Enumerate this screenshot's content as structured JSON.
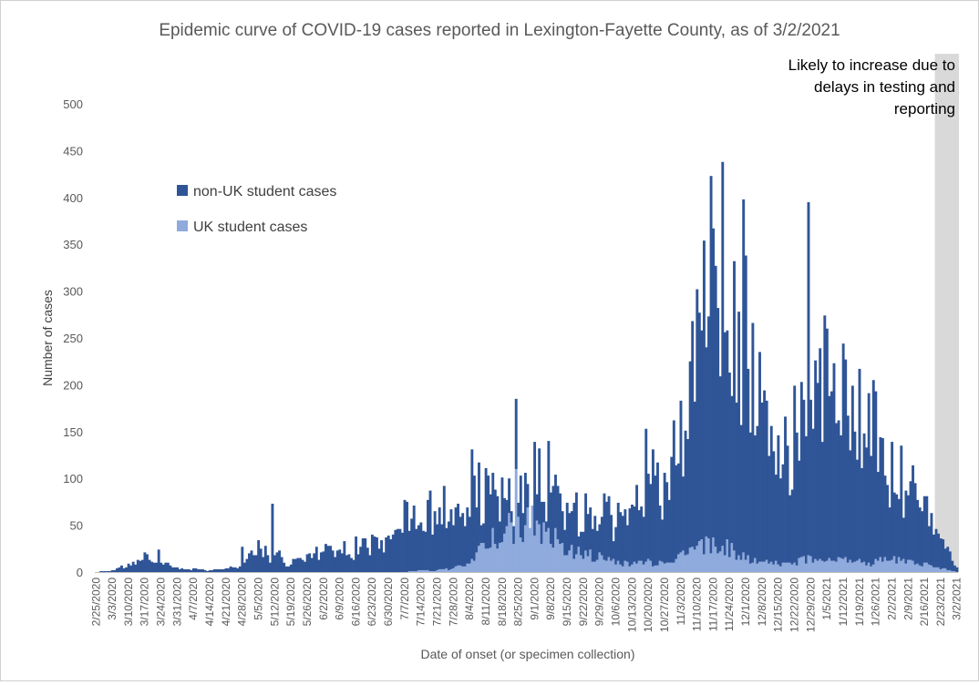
{
  "chart_data": {
    "type": "bar",
    "stacked": true,
    "title": "Epidemic curve of COVID-19 cases reported in Lexington-Fayette County, as of 3/2/2021",
    "xlabel": "Date of onset (or specimen collection)",
    "ylabel": "Number of cases",
    "ylim": [
      0,
      500
    ],
    "yticks": [
      "0",
      "50",
      "100",
      "150",
      "200",
      "250",
      "300",
      "350",
      "400",
      "450",
      "500"
    ],
    "grid": false,
    "legend_placement": "top-left",
    "colors": {
      "non_uk": "#2f5597",
      "uk": "#8faadc",
      "shade": "#d9d9d9"
    },
    "date_ticks": [
      "2/25/2020",
      "3/3/2020",
      "3/10/2020",
      "3/17/2020",
      "3/24/2020",
      "3/31/2020",
      "4/7/2020",
      "4/14/2020",
      "4/21/2020",
      "4/28/2020",
      "5/5/2020",
      "5/12/2020",
      "5/19/2020",
      "5/26/2020",
      "6/2/2020",
      "6/9/2020",
      "6/16/2020",
      "6/23/2020",
      "6/30/2020",
      "7/7/2020",
      "7/14/2020",
      "7/21/2020",
      "7/28/2020",
      "8/4/2020",
      "8/11/2020",
      "8/18/2020",
      "8/25/2020",
      "9/1/2020",
      "9/8/2020",
      "9/15/2020",
      "9/22/2020",
      "9/29/2020",
      "10/6/2020",
      "10/13/2020",
      "10/20/2020",
      "10/27/2020",
      "11/3/2020",
      "11/10/2020",
      "11/17/2020",
      "11/24/2020",
      "12/1/2020",
      "12/8/2020",
      "12/15/2020",
      "12/22/2020",
      "12/29/2020",
      "1/5/2021",
      "1/12/2021",
      "1/19/2021",
      "1/26/2021",
      "2/2/2021",
      "2/9/2021",
      "2/16/2021",
      "2/23/2021",
      "3/2/2021"
    ],
    "weekly_total": [
      0,
      2,
      8,
      18,
      10,
      5,
      3,
      2,
      4,
      8,
      25,
      20,
      10,
      15,
      25,
      25,
      28,
      32,
      42,
      58,
      62,
      70,
      72,
      85,
      88,
      95,
      90,
      105,
      110,
      80,
      65,
      70,
      68,
      75,
      95,
      110,
      140,
      230,
      320,
      260,
      220,
      180,
      140,
      150,
      200,
      195,
      185,
      170,
      150,
      115,
      95,
      80,
      45,
      5
    ],
    "weekly_uk": [
      0,
      0,
      0,
      0,
      0,
      0,
      0,
      0,
      0,
      0,
      0,
      0,
      0,
      0,
      0,
      0,
      0,
      0,
      0,
      0,
      2,
      2,
      4,
      8,
      30,
      45,
      50,
      55,
      40,
      25,
      20,
      15,
      10,
      8,
      10,
      12,
      18,
      30,
      30,
      25,
      15,
      12,
      10,
      10,
      15,
      15,
      12,
      10,
      10,
      15,
      10,
      8,
      5,
      0
    ],
    "peaks": [
      {
        "date": "3/23/2020",
        "total": 24
      },
      {
        "date": "4/28/2020",
        "total": 27
      },
      {
        "date": "5/11/2020",
        "total": 73
      },
      {
        "date": "8/5/2020",
        "total": 131
      },
      {
        "date": "8/24/2020",
        "total": 185,
        "uk": 110
      },
      {
        "date": "9/7/2020",
        "total": 140
      },
      {
        "date": "10/19/2020",
        "total": 153
      },
      {
        "date": "11/8/2020",
        "total": 268
      },
      {
        "date": "11/16/2020",
        "total": 423
      },
      {
        "date": "11/18/2020",
        "total": 327
      },
      {
        "date": "11/21/2020",
        "total": 438
      },
      {
        "date": "11/23/2020",
        "total": 258
      },
      {
        "date": "11/30/2020",
        "total": 398
      },
      {
        "date": "12/1/2020",
        "total": 338
      },
      {
        "date": "12/7/2020",
        "total": 235
      },
      {
        "date": "12/28/2020",
        "total": 395
      },
      {
        "date": "1/4/2021",
        "total": 274
      },
      {
        "date": "1/12/2021",
        "total": 244
      },
      {
        "date": "1/25/2021",
        "total": 205
      }
    ],
    "legend": [
      {
        "label": "non-UK student cases",
        "color": "#2f5597"
      },
      {
        "label": "UK student cases",
        "color": "#8faadc"
      }
    ],
    "annotation": "Likely to increase due to delays in testing and reporting",
    "annotation_lines": [
      "Likely to increase due to",
      "delays in testing and",
      "reporting"
    ],
    "shaded_from": "2/21/2021"
  }
}
